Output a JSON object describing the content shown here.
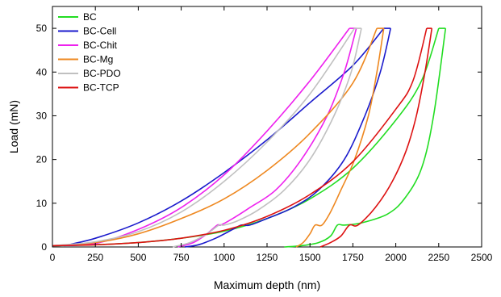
{
  "chart_data": {
    "type": "line",
    "title": "",
    "xlabel": "Maximum depth (nm)",
    "ylabel": "Load (mN)",
    "xlim": [
      0,
      2500
    ],
    "ylim": [
      0,
      55
    ],
    "xticks": [
      0,
      250,
      500,
      750,
      1000,
      1250,
      1500,
      1750,
      2000,
      2250,
      2500
    ],
    "yticks": [
      0,
      10,
      20,
      30,
      40,
      50
    ],
    "grid": false,
    "legend_position": "top-left",
    "series": [
      {
        "name": "BC",
        "color": "#22dd22",
        "loading": [
          [
            0,
            0.3
          ],
          [
            250,
            0.5
          ],
          [
            500,
            1
          ],
          [
            750,
            2
          ],
          [
            1000,
            3.6
          ],
          [
            1250,
            6.5
          ],
          [
            1500,
            11
          ],
          [
            1750,
            18
          ],
          [
            2000,
            29
          ],
          [
            2150,
            38
          ],
          [
            2250,
            50
          ]
        ],
        "hold": [
          [
            2250,
            50
          ],
          [
            2290,
            50
          ]
        ],
        "unloading": [
          [
            2290,
            50
          ],
          [
            2220,
            30
          ],
          [
            2150,
            18
          ],
          [
            2050,
            11
          ],
          [
            1950,
            7.5
          ],
          [
            1800,
            5.5
          ],
          [
            1700,
            5
          ],
          [
            1660,
            5
          ],
          [
            1620,
            2.5
          ],
          [
            1550,
            1
          ],
          [
            1450,
            0.3
          ],
          [
            1350,
            0
          ]
        ]
      },
      {
        "name": "BC-Cell",
        "color": "#1a1acc",
        "loading": [
          [
            70,
            0.3
          ],
          [
            250,
            2
          ],
          [
            500,
            5.5
          ],
          [
            750,
            10.5
          ],
          [
            1000,
            17
          ],
          [
            1250,
            24.5
          ],
          [
            1500,
            33
          ],
          [
            1750,
            41.5
          ],
          [
            1930,
            50
          ]
        ],
        "hold": [
          [
            1930,
            50
          ],
          [
            1970,
            50
          ]
        ],
        "unloading": [
          [
            1970,
            50
          ],
          [
            1910,
            40
          ],
          [
            1820,
            30
          ],
          [
            1700,
            20
          ],
          [
            1550,
            13
          ],
          [
            1400,
            9
          ],
          [
            1250,
            6.5
          ],
          [
            1150,
            5
          ],
          [
            1100,
            5
          ],
          [
            1050,
            4
          ],
          [
            950,
            2
          ],
          [
            850,
            0.5
          ],
          [
            770,
            0
          ]
        ]
      },
      {
        "name": "BC-Chit",
        "color": "#ee22ee",
        "loading": [
          [
            0,
            0.3
          ],
          [
            250,
            0.8
          ],
          [
            500,
            4
          ],
          [
            750,
            9
          ],
          [
            1000,
            16.5
          ],
          [
            1250,
            26.5
          ],
          [
            1500,
            38
          ],
          [
            1730,
            50
          ]
        ],
        "hold": [
          [
            1730,
            50
          ],
          [
            1770,
            50
          ]
        ],
        "unloading": [
          [
            1770,
            50
          ],
          [
            1700,
            40
          ],
          [
            1600,
            30
          ],
          [
            1450,
            20
          ],
          [
            1300,
            13
          ],
          [
            1150,
            9
          ],
          [
            1050,
            6.5
          ],
          [
            980,
            5
          ],
          [
            960,
            5
          ],
          [
            900,
            3
          ],
          [
            820,
            1
          ],
          [
            730,
            0
          ]
        ]
      },
      {
        "name": "BC-Mg",
        "color": "#ee8820",
        "loading": [
          [
            0,
            0.3
          ],
          [
            250,
            1
          ],
          [
            500,
            3
          ],
          [
            750,
            6.5
          ],
          [
            1000,
            11
          ],
          [
            1250,
            17.5
          ],
          [
            1500,
            26
          ],
          [
            1750,
            37.5
          ],
          [
            1890,
            50
          ]
        ],
        "hold": [
          [
            1890,
            50
          ],
          [
            1930,
            50
          ]
        ],
        "unloading": [
          [
            1930,
            50
          ],
          [
            1890,
            40
          ],
          [
            1840,
            30
          ],
          [
            1760,
            20
          ],
          [
            1680,
            13
          ],
          [
            1620,
            8
          ],
          [
            1570,
            5
          ],
          [
            1530,
            5
          ],
          [
            1500,
            3
          ],
          [
            1460,
            1
          ],
          [
            1420,
            0
          ]
        ]
      },
      {
        "name": "BC-PDO",
        "color": "#c0c0c0",
        "loading": [
          [
            0,
            0.3
          ],
          [
            250,
            1.2
          ],
          [
            500,
            3.5
          ],
          [
            750,
            8
          ],
          [
            1000,
            15
          ],
          [
            1250,
            24
          ],
          [
            1500,
            35
          ],
          [
            1760,
            50
          ]
        ],
        "hold": [
          [
            1760,
            50
          ],
          [
            1800,
            50
          ]
        ],
        "unloading": [
          [
            1800,
            50
          ],
          [
            1740,
            40
          ],
          [
            1640,
            30
          ],
          [
            1500,
            20
          ],
          [
            1350,
            13
          ],
          [
            1200,
            8.5
          ],
          [
            1080,
            6
          ],
          [
            1000,
            5
          ],
          [
            970,
            5
          ],
          [
            900,
            3
          ],
          [
            800,
            1
          ],
          [
            700,
            0
          ]
        ]
      },
      {
        "name": "BC-TCP",
        "color": "#dd1111",
        "loading": [
          [
            0,
            0.3
          ],
          [
            250,
            0.5
          ],
          [
            500,
            1
          ],
          [
            750,
            2
          ],
          [
            1000,
            3.8
          ],
          [
            1250,
            7
          ],
          [
            1500,
            12
          ],
          [
            1750,
            19.5
          ],
          [
            2000,
            31.5
          ],
          [
            2100,
            38
          ],
          [
            2180,
            50
          ]
        ],
        "hold": [
          [
            2180,
            50
          ],
          [
            2210,
            50
          ]
        ],
        "unloading": [
          [
            2210,
            50
          ],
          [
            2170,
            40
          ],
          [
            2120,
            30
          ],
          [
            2060,
            22
          ],
          [
            1980,
            15
          ],
          [
            1880,
            9
          ],
          [
            1780,
            5
          ],
          [
            1730,
            5
          ],
          [
            1680,
            2.5
          ],
          [
            1620,
            1
          ],
          [
            1560,
            0
          ]
        ]
      }
    ]
  }
}
